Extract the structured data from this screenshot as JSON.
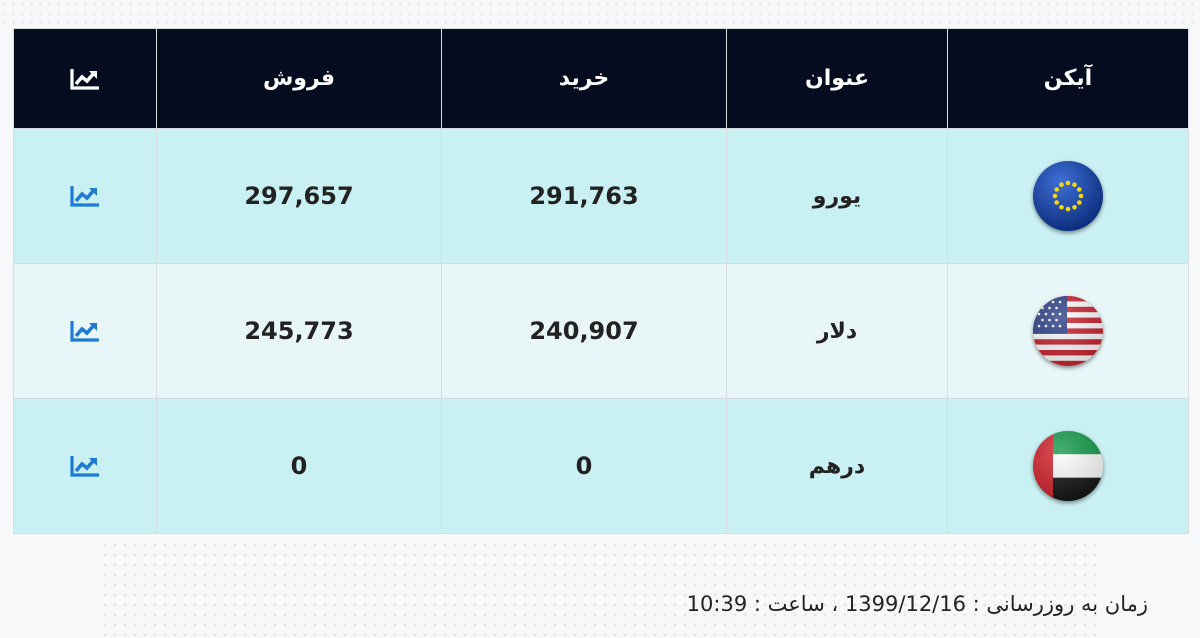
{
  "table": {
    "headers": {
      "icon": "آیکن",
      "name": "عنوان",
      "buy": "خرید",
      "sell": "فروش",
      "chart_icon": "chart-line-icon"
    },
    "rows": [
      {
        "flag": "eu-flag-icon",
        "name": "یورو",
        "buy": "291,763",
        "sell": "297,657",
        "chart_icon": "chart-line-icon"
      },
      {
        "flag": "us-flag-icon",
        "name": "دلار",
        "buy": "240,907",
        "sell": "245,773",
        "chart_icon": "chart-line-icon"
      },
      {
        "flag": "uae-flag-icon",
        "name": "درهم",
        "buy": "0",
        "sell": "0",
        "chart_icon": "chart-line-icon"
      }
    ]
  },
  "footer": {
    "label": "زمان به روزرسانی :",
    "date": "1399/12/16",
    "time_label": "، ساعت :",
    "time": "10:39"
  },
  "colors": {
    "header_bg": "#060c1f",
    "row_odd_bg": "#c9f0f3",
    "row_even_bg": "#e8f6f7",
    "chart_icon_color": "#1f7ad6"
  }
}
